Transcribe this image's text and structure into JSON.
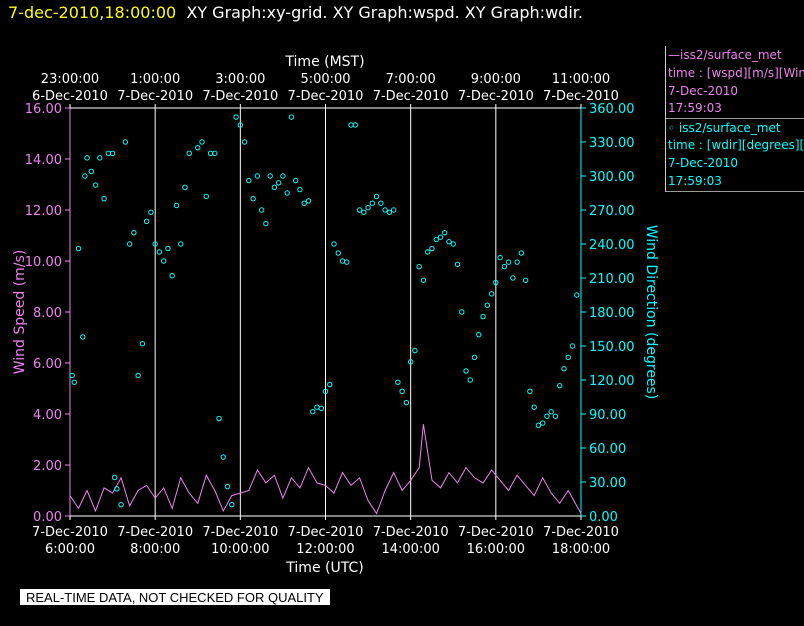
{
  "header": {
    "timestamp": "7-dec-2010,18:00:00",
    "titles": "XY Graph:xy-grid.  XY Graph:wspd.  XY Graph:wdir."
  },
  "legend": {
    "wspd": {
      "name": "—iss2/surface_met",
      "desc": "time : [wspd][m/s][Wind",
      "date": "7-Dec-2010",
      "time": "17:59:03",
      "color": "#ee82ee"
    },
    "wdir": {
      "name": "◦ iss2/surface_met",
      "desc": "time : [wdir][degrees][W",
      "date": "7-Dec-2010",
      "time": "17:59:03",
      "color": "#00ffff"
    }
  },
  "quality_note": "REAL-TIME DATA, NOT CHECKED FOR QUALITY",
  "colors": {
    "wspd": "#ee82ee",
    "wdir": "#00ffff",
    "timestamp": "#ffff00",
    "background": "#000000"
  },
  "chart_data": {
    "type": "line",
    "top_axis": {
      "title": "Time (MST)",
      "ticks": [
        {
          "t": 0,
          "time": "23:00:00",
          "date": "6-Dec-2010"
        },
        {
          "t": 2,
          "time": "1:00:00",
          "date": "7-Dec-2010"
        },
        {
          "t": 4,
          "time": "3:00:00",
          "date": "7-Dec-2010"
        },
        {
          "t": 6,
          "time": "5:00:00",
          "date": "7-Dec-2010"
        },
        {
          "t": 8,
          "time": "7:00:00",
          "date": "7-Dec-2010"
        },
        {
          "t": 10,
          "time": "9:00:00",
          "date": "7-Dec-2010"
        },
        {
          "t": 12,
          "time": "11:00:00",
          "date": "7-Dec-2010"
        }
      ]
    },
    "bottom_axis": {
      "title": "Time (UTC)",
      "ticks": [
        {
          "t": 0,
          "date": "7-Dec-2010",
          "time": "6:00:00"
        },
        {
          "t": 2,
          "date": "7-Dec-2010",
          "time": "8:00:00"
        },
        {
          "t": 4,
          "date": "7-Dec-2010",
          "time": "10:00:00"
        },
        {
          "t": 6,
          "date": "7-Dec-2010",
          "time": "12:00:00"
        },
        {
          "t": 8,
          "date": "7-Dec-2010",
          "time": "14:00:00"
        },
        {
          "t": 10,
          "date": "7-Dec-2010",
          "time": "16:00:00"
        },
        {
          "t": 12,
          "date": "7-Dec-2010",
          "time": "18:00:00"
        }
      ]
    },
    "x_range_hours_utc": [
      6,
      18
    ],
    "left_axis": {
      "label": "Wind Speed (m/s)",
      "range": [
        0,
        16
      ],
      "ticks": [
        "0.00",
        "2.00",
        "4.00",
        "6.00",
        "8.00",
        "10.00",
        "12.00",
        "14.00",
        "16.00"
      ]
    },
    "right_axis": {
      "label": "Wind Direction (degrees)",
      "range": [
        0,
        360
      ],
      "ticks": [
        "0.00",
        "30.00",
        "60.00",
        "90.00",
        "120.00",
        "150.00",
        "180.00",
        "210.00",
        "240.00",
        "270.00",
        "300.00",
        "330.00",
        "360.00"
      ]
    },
    "vertical_grid_at_utc_hours": [
      8,
      10,
      12,
      14,
      16
    ],
    "series": [
      {
        "name": "iss2/surface_met wspd",
        "style": "line",
        "axis": "left",
        "x_hours_utc": [
          6.0,
          6.2,
          6.4,
          6.6,
          6.8,
          7.0,
          7.2,
          7.4,
          7.6,
          7.8,
          8.0,
          8.2,
          8.4,
          8.6,
          8.8,
          9.0,
          9.2,
          9.4,
          9.6,
          9.8,
          10.0,
          10.2,
          10.4,
          10.6,
          10.8,
          11.0,
          11.2,
          11.4,
          11.6,
          11.8,
          12.0,
          12.2,
          12.4,
          12.6,
          12.8,
          13.0,
          13.2,
          13.4,
          13.6,
          13.8,
          14.0,
          14.2,
          14.3,
          14.5,
          14.7,
          14.9,
          15.1,
          15.3,
          15.5,
          15.7,
          15.9,
          16.1,
          16.3,
          16.5,
          16.7,
          16.9,
          17.1,
          17.3,
          17.5,
          17.7,
          17.9,
          18.0
        ],
        "values": [
          0.8,
          0.3,
          1.0,
          0.2,
          1.1,
          0.9,
          1.5,
          0.4,
          1.0,
          1.2,
          0.7,
          1.1,
          0.3,
          1.5,
          0.9,
          0.5,
          1.6,
          1.0,
          0.2,
          0.8,
          0.9,
          1.0,
          1.8,
          1.3,
          1.6,
          0.7,
          1.5,
          1.1,
          1.9,
          1.3,
          1.2,
          0.9,
          1.7,
          1.2,
          1.5,
          0.6,
          0.1,
          1.0,
          1.7,
          1.0,
          1.4,
          1.9,
          3.6,
          1.4,
          1.1,
          1.7,
          1.3,
          1.9,
          1.5,
          1.3,
          1.8,
          1.4,
          1.0,
          1.6,
          1.2,
          0.8,
          1.5,
          0.9,
          0.5,
          1.0,
          0.4,
          0.1
        ]
      },
      {
        "name": "iss2/surface_met wdir",
        "style": "points",
        "axis": "right",
        "x_hours_utc": [
          6.05,
          6.1,
          6.2,
          6.3,
          6.35,
          6.4,
          6.5,
          6.6,
          6.7,
          6.8,
          6.9,
          7.0,
          7.05,
          7.1,
          7.2,
          7.3,
          7.4,
          7.5,
          7.6,
          7.7,
          7.8,
          7.9,
          8.0,
          8.1,
          8.2,
          8.3,
          8.4,
          8.5,
          8.6,
          8.7,
          8.8,
          9.0,
          9.1,
          9.2,
          9.3,
          9.4,
          9.5,
          9.6,
          9.7,
          9.8,
          9.9,
          10.0,
          10.1,
          10.2,
          10.3,
          10.4,
          10.5,
          10.6,
          10.7,
          10.8,
          10.9,
          11.0,
          11.1,
          11.2,
          11.3,
          11.4,
          11.5,
          11.6,
          11.7,
          11.8,
          11.9,
          12.0,
          12.1,
          12.2,
          12.3,
          12.4,
          12.5,
          12.6,
          12.7,
          12.8,
          12.9,
          13.0,
          13.1,
          13.2,
          13.3,
          13.4,
          13.5,
          13.6,
          13.7,
          13.8,
          13.9,
          14.0,
          14.1,
          14.2,
          14.3,
          14.4,
          14.5,
          14.6,
          14.7,
          14.8,
          14.9,
          15.0,
          15.1,
          15.2,
          15.3,
          15.4,
          15.5,
          15.6,
          15.7,
          15.8,
          15.9,
          16.0,
          16.1,
          16.2,
          16.3,
          16.4,
          16.5,
          16.6,
          16.7,
          16.8,
          16.9,
          17.0,
          17.1,
          17.2,
          17.3,
          17.4,
          17.5,
          17.6,
          17.7,
          17.8,
          17.9
        ],
        "values": [
          124,
          118,
          236,
          158,
          300,
          316,
          304,
          292,
          316,
          280,
          320,
          320,
          34,
          24,
          10,
          330,
          240,
          250,
          124,
          152,
          260,
          268,
          240,
          233,
          225,
          236,
          212,
          274,
          240,
          290,
          320,
          325,
          330,
          282,
          320,
          320,
          86,
          52,
          26,
          10,
          352,
          345,
          330,
          296,
          280,
          300,
          270,
          258,
          300,
          290,
          294,
          300,
          285,
          352,
          296,
          288,
          276,
          278,
          92,
          96,
          95,
          110,
          116,
          240,
          232,
          225,
          224,
          345,
          345,
          270,
          268,
          272,
          276,
          282,
          276,
          270,
          268,
          270,
          118,
          110,
          100,
          136,
          146,
          220,
          208,
          233,
          236,
          244,
          246,
          250,
          242,
          240,
          222,
          180,
          128,
          120,
          140,
          160,
          176,
          186,
          196,
          206,
          228,
          220,
          224,
          210,
          224,
          232,
          208,
          110,
          96,
          80,
          82,
          88,
          92,
          88,
          115,
          130,
          140,
          150,
          195
        ]
      }
    ]
  }
}
